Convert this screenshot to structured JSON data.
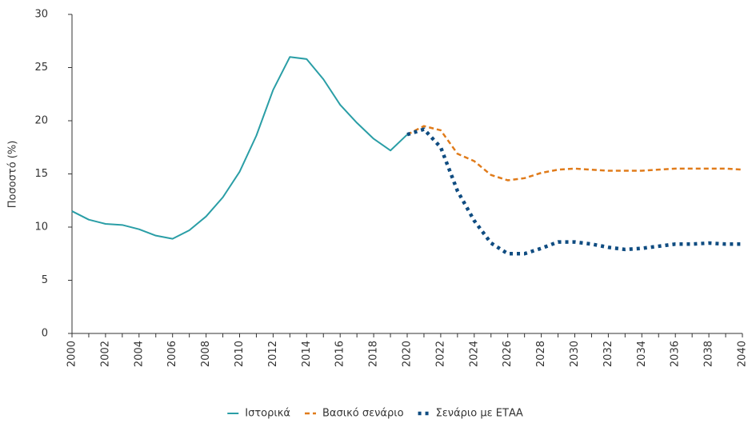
{
  "chart_data": {
    "type": "line",
    "ylabel": "Ποσοστό (%)",
    "x": [
      2000,
      2001,
      2002,
      2003,
      2004,
      2005,
      2006,
      2007,
      2008,
      2009,
      2010,
      2011,
      2012,
      2013,
      2014,
      2015,
      2016,
      2017,
      2018,
      2019,
      2020,
      2021,
      2022,
      2023,
      2024,
      2025,
      2026,
      2027,
      2028,
      2029,
      2030,
      2031,
      2032,
      2033,
      2034,
      2035,
      2036,
      2037,
      2038,
      2039,
      2040
    ],
    "series": [
      {
        "name": "Ιστορικά",
        "color": "#2a9ea6",
        "dash": "solid",
        "values": [
          11.5,
          10.7,
          10.3,
          10.2,
          9.8,
          9.2,
          8.9,
          9.7,
          11.0,
          12.8,
          15.2,
          18.6,
          22.9,
          26.0,
          25.8,
          23.9,
          21.5,
          19.8,
          18.3,
          17.2,
          18.7,
          null,
          null,
          null,
          null,
          null,
          null,
          null,
          null,
          null,
          null,
          null,
          null,
          null,
          null,
          null,
          null,
          null,
          null,
          null,
          null
        ]
      },
      {
        "name": "Βασικό σενάριο",
        "color": "#e07b1a",
        "dash": "dashed",
        "values": [
          null,
          null,
          null,
          null,
          null,
          null,
          null,
          null,
          null,
          null,
          null,
          null,
          null,
          null,
          null,
          null,
          null,
          null,
          null,
          null,
          18.7,
          19.5,
          19.1,
          16.9,
          16.2,
          14.9,
          14.4,
          14.6,
          15.1,
          15.4,
          15.5,
          15.4,
          15.3,
          15.3,
          15.3,
          15.4,
          15.5,
          15.5,
          15.5,
          15.5,
          15.4
        ]
      },
      {
        "name": "Σενάριο με ΕΤΑΑ",
        "color": "#0f4c81",
        "dash": "dotted",
        "values": [
          null,
          null,
          null,
          null,
          null,
          null,
          null,
          null,
          null,
          null,
          null,
          null,
          null,
          null,
          null,
          null,
          null,
          null,
          null,
          null,
          18.7,
          19.2,
          17.5,
          13.4,
          10.6,
          8.5,
          7.5,
          7.5,
          8.0,
          8.6,
          8.6,
          8.4,
          8.1,
          7.9,
          8.0,
          8.2,
          8.4,
          8.4,
          8.5,
          8.4,
          8.4
        ]
      }
    ],
    "xlim": [
      2000,
      2040
    ],
    "xticks": [
      2000,
      2002,
      2004,
      2006,
      2008,
      2010,
      2012,
      2014,
      2016,
      2018,
      2020,
      2022,
      2024,
      2026,
      2028,
      2030,
      2032,
      2034,
      2036,
      2038,
      2040
    ],
    "ylim": [
      0,
      30
    ],
    "yticks": [
      0,
      5,
      10,
      15,
      20,
      25,
      30
    ],
    "grid": false,
    "legend": "bottom"
  }
}
